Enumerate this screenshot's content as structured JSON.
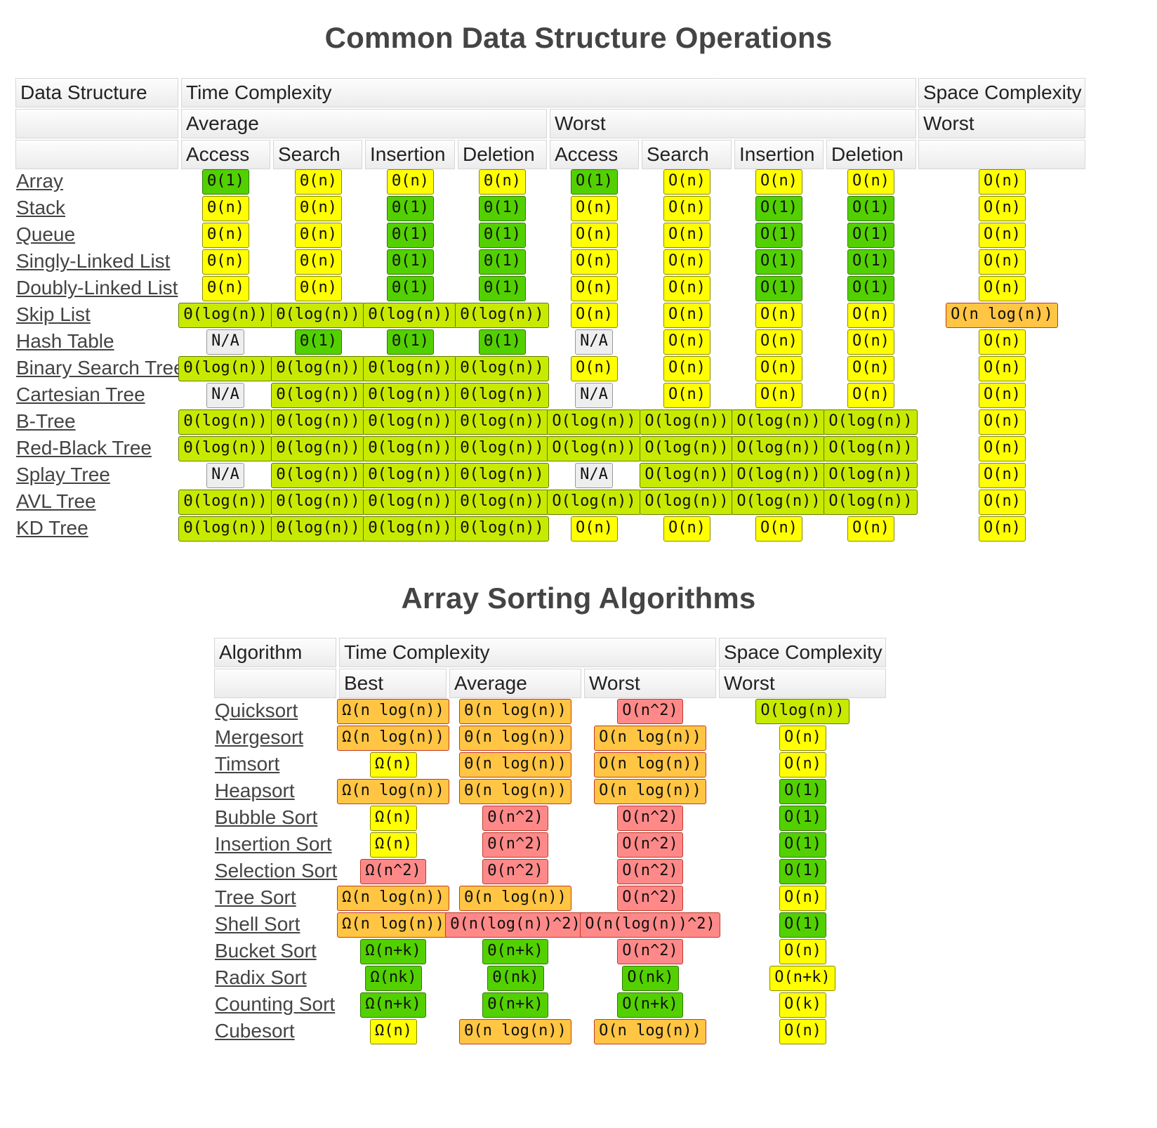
{
  "ds": {
    "title": "Common Data Structure Operations",
    "headers": {
      "col_name": "Data Structure",
      "time": "Time Complexity",
      "space": "Space Complexity",
      "average": "Average",
      "worst": "Worst",
      "space_worst": "Worst",
      "ops": [
        "Access",
        "Search",
        "Insertion",
        "Deletion",
        "Access",
        "Search",
        "Insertion",
        "Deletion"
      ]
    },
    "rows": [
      {
        "name": "Array",
        "cells": [
          "Θ(1)",
          "Θ(n)",
          "Θ(n)",
          "Θ(n)",
          "O(1)",
          "O(n)",
          "O(n)",
          "O(n)",
          "O(n)"
        ],
        "classes": [
          "g1",
          "y",
          "y",
          "y",
          "g1",
          "y",
          "y",
          "y",
          "y"
        ]
      },
      {
        "name": "Stack",
        "cells": [
          "Θ(n)",
          "Θ(n)",
          "Θ(1)",
          "Θ(1)",
          "O(n)",
          "O(n)",
          "O(1)",
          "O(1)",
          "O(n)"
        ],
        "classes": [
          "y",
          "y",
          "g1",
          "g1",
          "y",
          "y",
          "g1",
          "g1",
          "y"
        ]
      },
      {
        "name": "Queue",
        "cells": [
          "Θ(n)",
          "Θ(n)",
          "Θ(1)",
          "Θ(1)",
          "O(n)",
          "O(n)",
          "O(1)",
          "O(1)",
          "O(n)"
        ],
        "classes": [
          "y",
          "y",
          "g1",
          "g1",
          "y",
          "y",
          "g1",
          "g1",
          "y"
        ]
      },
      {
        "name": "Singly-Linked List",
        "cells": [
          "Θ(n)",
          "Θ(n)",
          "Θ(1)",
          "Θ(1)",
          "O(n)",
          "O(n)",
          "O(1)",
          "O(1)",
          "O(n)"
        ],
        "classes": [
          "y",
          "y",
          "g1",
          "g1",
          "y",
          "y",
          "g1",
          "g1",
          "y"
        ]
      },
      {
        "name": "Doubly-Linked List",
        "cells": [
          "Θ(n)",
          "Θ(n)",
          "Θ(1)",
          "Θ(1)",
          "O(n)",
          "O(n)",
          "O(1)",
          "O(1)",
          "O(n)"
        ],
        "classes": [
          "y",
          "y",
          "g1",
          "g1",
          "y",
          "y",
          "g1",
          "g1",
          "y"
        ]
      },
      {
        "name": "Skip List",
        "cells": [
          "Θ(log(n))",
          "Θ(log(n))",
          "Θ(log(n))",
          "Θ(log(n))",
          "O(n)",
          "O(n)",
          "O(n)",
          "O(n)",
          "O(n log(n))"
        ],
        "classes": [
          "g2",
          "g2",
          "g2",
          "g2",
          "y",
          "y",
          "y",
          "y",
          "o"
        ]
      },
      {
        "name": "Hash Table",
        "cells": [
          "N/A",
          "Θ(1)",
          "Θ(1)",
          "Θ(1)",
          "N/A",
          "O(n)",
          "O(n)",
          "O(n)",
          "O(n)"
        ],
        "classes": [
          "na",
          "g1",
          "g1",
          "g1",
          "na",
          "y",
          "y",
          "y",
          "y"
        ]
      },
      {
        "name": "Binary Search Tree",
        "cells": [
          "Θ(log(n))",
          "Θ(log(n))",
          "Θ(log(n))",
          "Θ(log(n))",
          "O(n)",
          "O(n)",
          "O(n)",
          "O(n)",
          "O(n)"
        ],
        "classes": [
          "g2",
          "g2",
          "g2",
          "g2",
          "y",
          "y",
          "y",
          "y",
          "y"
        ]
      },
      {
        "name": "Cartesian Tree",
        "cells": [
          "N/A",
          "Θ(log(n))",
          "Θ(log(n))",
          "Θ(log(n))",
          "N/A",
          "O(n)",
          "O(n)",
          "O(n)",
          "O(n)"
        ],
        "classes": [
          "na",
          "g2",
          "g2",
          "g2",
          "na",
          "y",
          "y",
          "y",
          "y"
        ]
      },
      {
        "name": "B-Tree",
        "cells": [
          "Θ(log(n))",
          "Θ(log(n))",
          "Θ(log(n))",
          "Θ(log(n))",
          "O(log(n))",
          "O(log(n))",
          "O(log(n))",
          "O(log(n))",
          "O(n)"
        ],
        "classes": [
          "g2",
          "g2",
          "g2",
          "g2",
          "g2",
          "g2",
          "g2",
          "g2",
          "y"
        ]
      },
      {
        "name": "Red-Black Tree",
        "cells": [
          "Θ(log(n))",
          "Θ(log(n))",
          "Θ(log(n))",
          "Θ(log(n))",
          "O(log(n))",
          "O(log(n))",
          "O(log(n))",
          "O(log(n))",
          "O(n)"
        ],
        "classes": [
          "g2",
          "g2",
          "g2",
          "g2",
          "g2",
          "g2",
          "g2",
          "g2",
          "y"
        ]
      },
      {
        "name": "Splay Tree",
        "cells": [
          "N/A",
          "Θ(log(n))",
          "Θ(log(n))",
          "Θ(log(n))",
          "N/A",
          "O(log(n))",
          "O(log(n))",
          "O(log(n))",
          "O(n)"
        ],
        "classes": [
          "na",
          "g2",
          "g2",
          "g2",
          "na",
          "g2",
          "g2",
          "g2",
          "y"
        ]
      },
      {
        "name": "AVL Tree",
        "cells": [
          "Θ(log(n))",
          "Θ(log(n))",
          "Θ(log(n))",
          "Θ(log(n))",
          "O(log(n))",
          "O(log(n))",
          "O(log(n))",
          "O(log(n))",
          "O(n)"
        ],
        "classes": [
          "g2",
          "g2",
          "g2",
          "g2",
          "g2",
          "g2",
          "g2",
          "g2",
          "y"
        ]
      },
      {
        "name": "KD Tree",
        "cells": [
          "Θ(log(n))",
          "Θ(log(n))",
          "Θ(log(n))",
          "Θ(log(n))",
          "O(n)",
          "O(n)",
          "O(n)",
          "O(n)",
          "O(n)"
        ],
        "classes": [
          "g2",
          "g2",
          "g2",
          "g2",
          "y",
          "y",
          "y",
          "y",
          "y"
        ]
      }
    ]
  },
  "sort": {
    "title": "Array Sorting Algorithms",
    "headers": {
      "col_name": "Algorithm",
      "time": "Time Complexity",
      "space": "Space Complexity",
      "best": "Best",
      "average": "Average",
      "worst": "Worst",
      "space_worst": "Worst"
    },
    "rows": [
      {
        "name": "Quicksort",
        "cells": [
          "Ω(n log(n))",
          "Θ(n log(n))",
          "O(n^2)",
          "O(log(n))"
        ],
        "classes": [
          "o",
          "o",
          "r",
          "g2"
        ]
      },
      {
        "name": "Mergesort",
        "cells": [
          "Ω(n log(n))",
          "Θ(n log(n))",
          "O(n log(n))",
          "O(n)"
        ],
        "classes": [
          "o",
          "o",
          "o",
          "y"
        ]
      },
      {
        "name": "Timsort",
        "cells": [
          "Ω(n)",
          "Θ(n log(n))",
          "O(n log(n))",
          "O(n)"
        ],
        "classes": [
          "y",
          "o",
          "o",
          "y"
        ]
      },
      {
        "name": "Heapsort",
        "cells": [
          "Ω(n log(n))",
          "Θ(n log(n))",
          "O(n log(n))",
          "O(1)"
        ],
        "classes": [
          "o",
          "o",
          "o",
          "g1"
        ]
      },
      {
        "name": "Bubble Sort",
        "cells": [
          "Ω(n)",
          "Θ(n^2)",
          "O(n^2)",
          "O(1)"
        ],
        "classes": [
          "y",
          "r",
          "r",
          "g1"
        ]
      },
      {
        "name": "Insertion Sort",
        "cells": [
          "Ω(n)",
          "Θ(n^2)",
          "O(n^2)",
          "O(1)"
        ],
        "classes": [
          "y",
          "r",
          "r",
          "g1"
        ]
      },
      {
        "name": "Selection Sort",
        "cells": [
          "Ω(n^2)",
          "Θ(n^2)",
          "O(n^2)",
          "O(1)"
        ],
        "classes": [
          "r",
          "r",
          "r",
          "g1"
        ]
      },
      {
        "name": "Tree Sort",
        "cells": [
          "Ω(n log(n))",
          "Θ(n log(n))",
          "O(n^2)",
          "O(n)"
        ],
        "classes": [
          "o",
          "o",
          "r",
          "y"
        ]
      },
      {
        "name": "Shell Sort",
        "cells": [
          "Ω(n log(n))",
          "Θ(n(log(n))^2)",
          "O(n(log(n))^2)",
          "O(1)"
        ],
        "classes": [
          "o",
          "r",
          "r",
          "g1"
        ]
      },
      {
        "name": "Bucket Sort",
        "cells": [
          "Ω(n+k)",
          "Θ(n+k)",
          "O(n^2)",
          "O(n)"
        ],
        "classes": [
          "g1",
          "g1",
          "r",
          "y"
        ]
      },
      {
        "name": "Radix Sort",
        "cells": [
          "Ω(nk)",
          "Θ(nk)",
          "O(nk)",
          "O(n+k)"
        ],
        "classes": [
          "g1",
          "g1",
          "g1",
          "y"
        ]
      },
      {
        "name": "Counting Sort",
        "cells": [
          "Ω(n+k)",
          "Θ(n+k)",
          "O(n+k)",
          "O(k)"
        ],
        "classes": [
          "g1",
          "g1",
          "g1",
          "y"
        ]
      },
      {
        "name": "Cubesort",
        "cells": [
          "Ω(n)",
          "Θ(n log(n))",
          "O(n log(n))",
          "O(n)"
        ],
        "classes": [
          "y",
          "o",
          "o",
          "y"
        ]
      }
    ]
  }
}
